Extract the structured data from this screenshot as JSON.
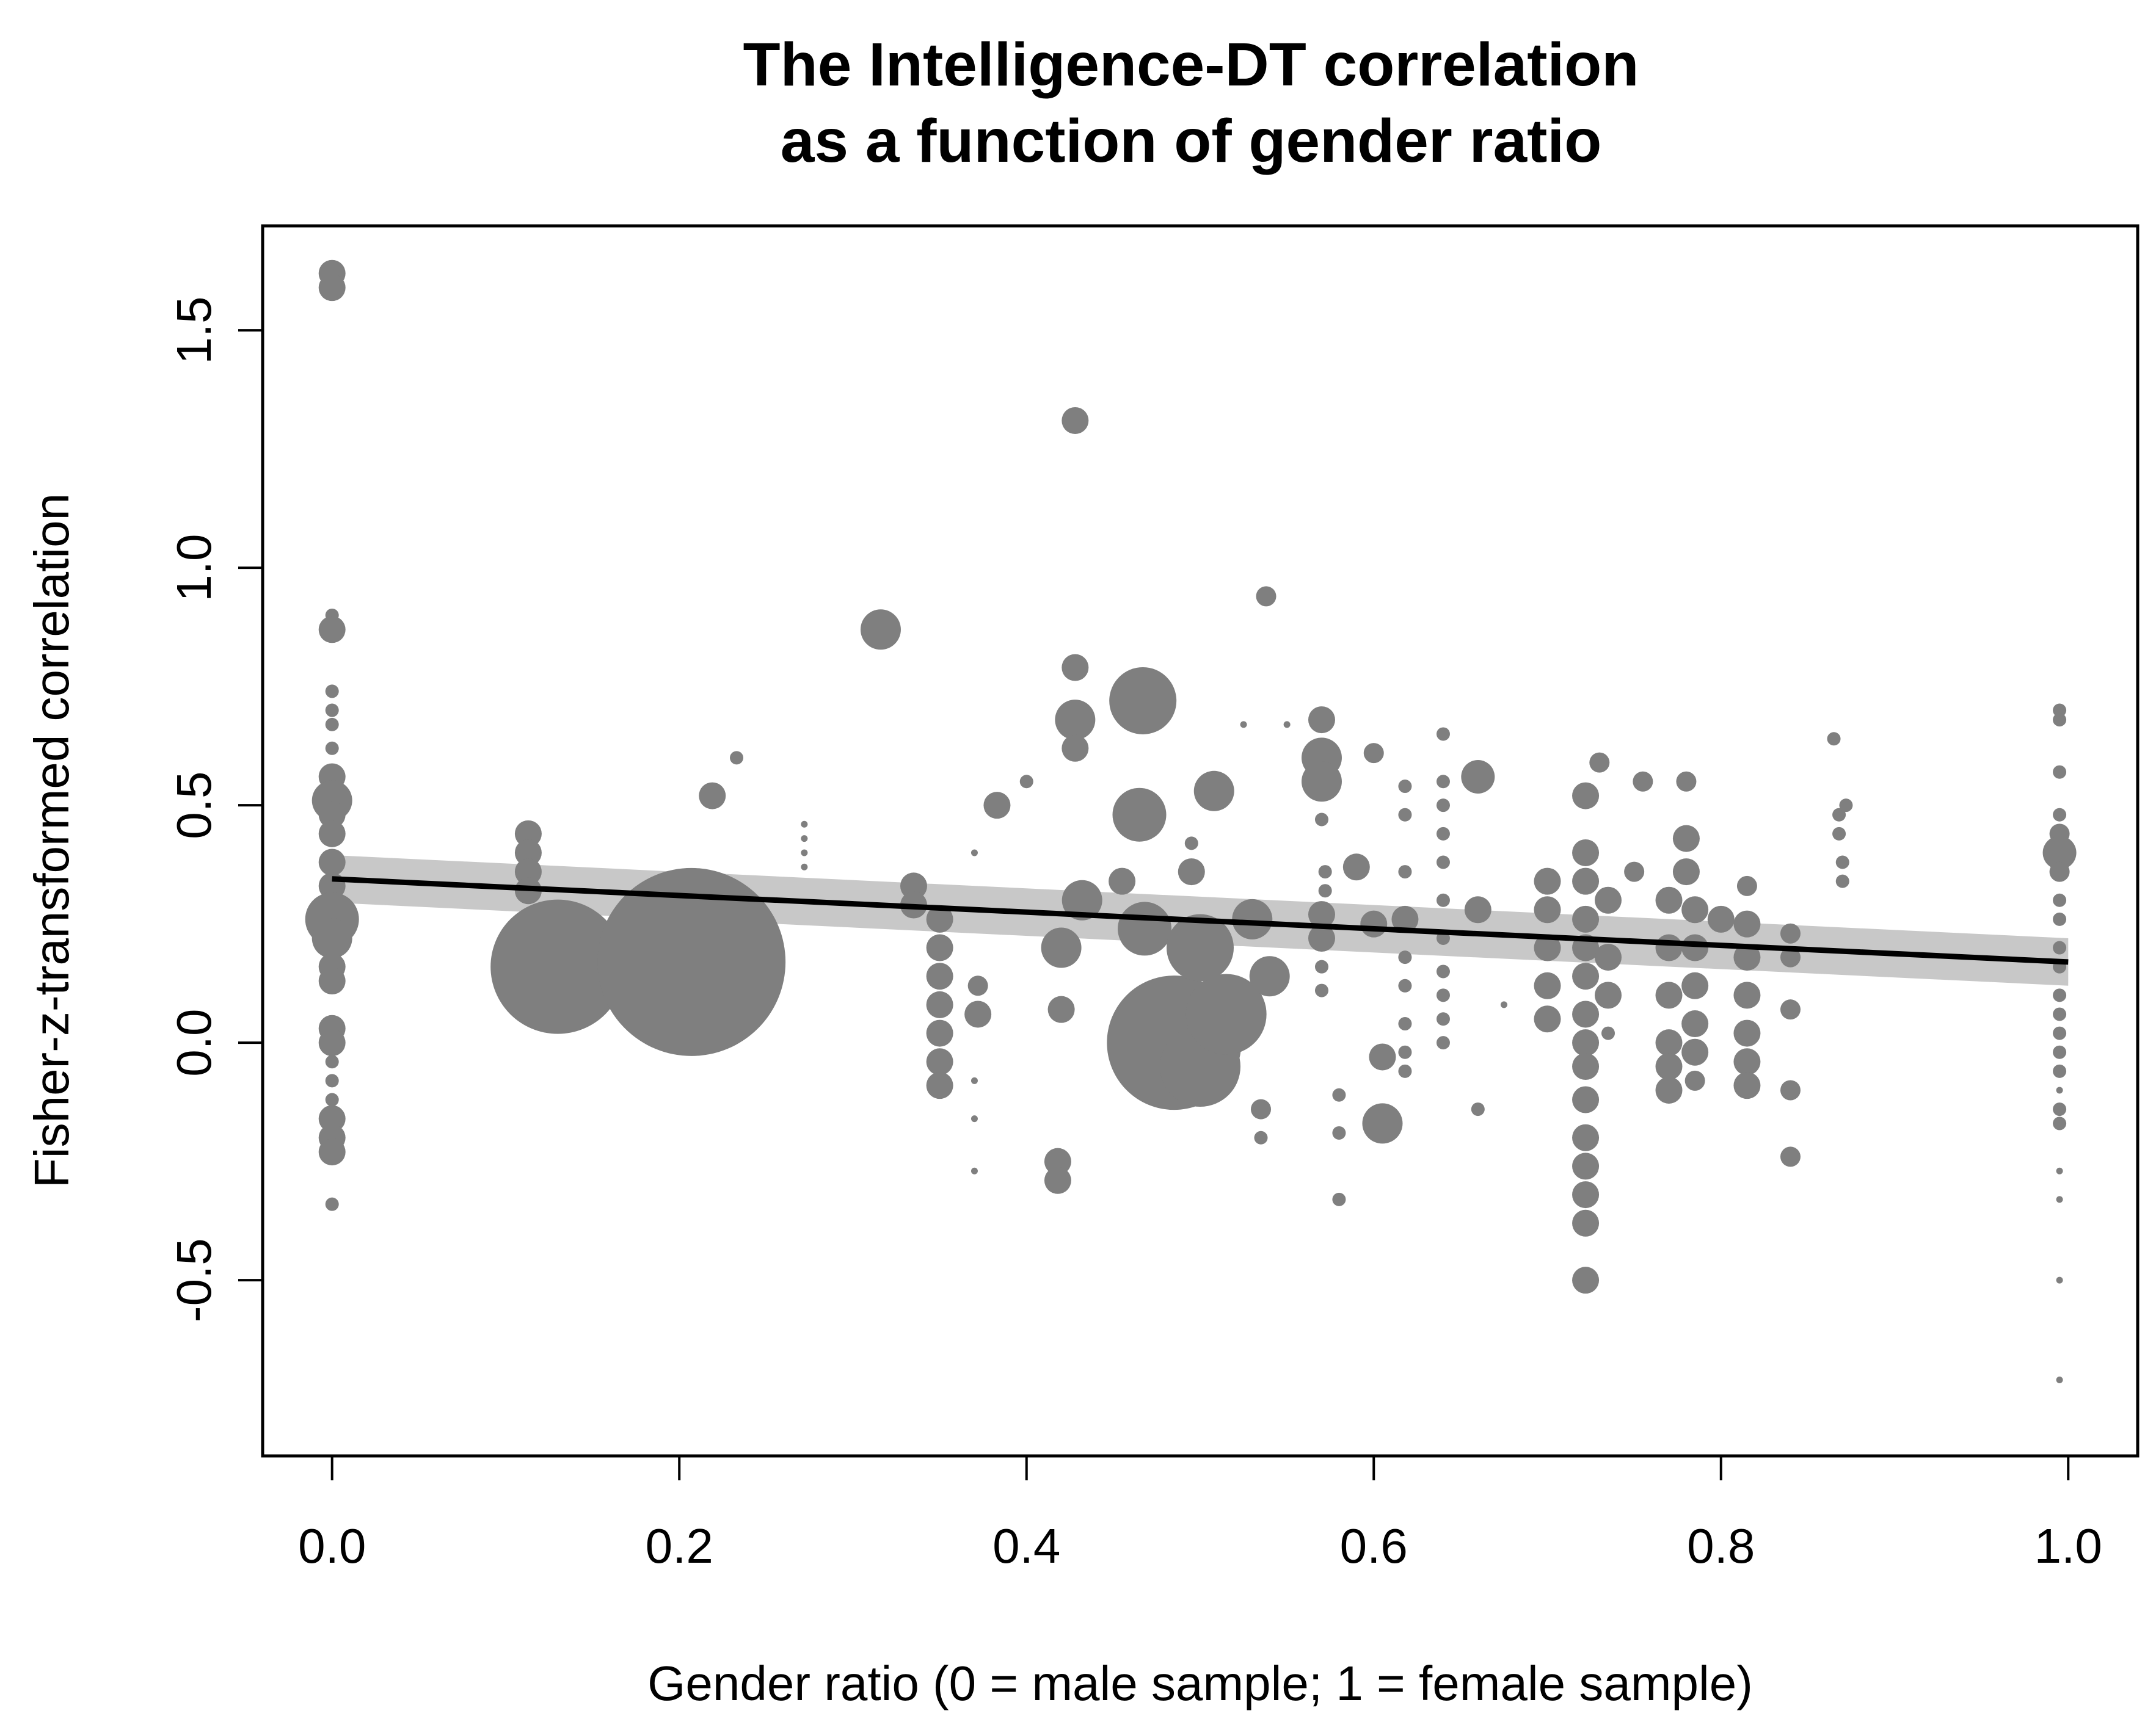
{
  "chart_data": {
    "type": "scatter",
    "title_lines": [
      "The Intelligence-DT correlation",
      "as a function of gender ratio"
    ],
    "xlabel": "Gender ratio (0 = male sample; 1 = female sample)",
    "ylabel": "Fisher-z-transformed correlation",
    "xlim": [
      -0.04,
      1.04
    ],
    "ylim": [
      -0.87,
      1.72
    ],
    "x_ticks": [
      0.0,
      0.2,
      0.4,
      0.6,
      0.8,
      1.0
    ],
    "x_tick_labels": [
      "0.0",
      "0.2",
      "0.4",
      "0.6",
      "0.8",
      "1.0"
    ],
    "y_ticks": [
      -0.5,
      0.0,
      0.5,
      1.0,
      1.5
    ],
    "y_tick_labels": [
      "-0.5",
      "0.0",
      "0.5",
      "1.0",
      "1.5"
    ],
    "marker_color": "#7f7f7f",
    "band_color": "#c8c8c8",
    "line_color": "#000000",
    "regression": {
      "intercept": 0.345,
      "slope": -0.175,
      "ci_halfwidth": 0.05
    },
    "points": [
      {
        "x": 0.0,
        "y": 1.62,
        "size": 2
      },
      {
        "x": 0.0,
        "y": 1.59,
        "size": 2
      },
      {
        "x": 0.0,
        "y": 0.9,
        "size": 1
      },
      {
        "x": 0.0,
        "y": 0.87,
        "size": 2
      },
      {
        "x": 0.0,
        "y": 0.74,
        "size": 1
      },
      {
        "x": 0.0,
        "y": 0.7,
        "size": 1
      },
      {
        "x": 0.0,
        "y": 0.67,
        "size": 1
      },
      {
        "x": 0.0,
        "y": 0.62,
        "size": 1
      },
      {
        "x": 0.0,
        "y": 0.56,
        "size": 2
      },
      {
        "x": 0.0,
        "y": 0.51,
        "size": 3
      },
      {
        "x": 0.0,
        "y": 0.48,
        "size": 2
      },
      {
        "x": 0.0,
        "y": 0.44,
        "size": 2
      },
      {
        "x": 0.0,
        "y": 0.38,
        "size": 2
      },
      {
        "x": 0.0,
        "y": 0.33,
        "size": 2
      },
      {
        "x": 0.0,
        "y": 0.28,
        "size": 2
      },
      {
        "x": 0.0,
        "y": 0.26,
        "size": 4
      },
      {
        "x": 0.0,
        "y": 0.22,
        "size": 3
      },
      {
        "x": 0.0,
        "y": 0.16,
        "size": 2
      },
      {
        "x": 0.0,
        "y": 0.13,
        "size": 2
      },
      {
        "x": 0.0,
        "y": 0.03,
        "size": 2
      },
      {
        "x": 0.0,
        "y": 0.0,
        "size": 2
      },
      {
        "x": 0.0,
        "y": -0.04,
        "size": 1
      },
      {
        "x": 0.0,
        "y": -0.08,
        "size": 1
      },
      {
        "x": 0.0,
        "y": -0.12,
        "size": 1
      },
      {
        "x": 0.0,
        "y": -0.16,
        "size": 2
      },
      {
        "x": 0.0,
        "y": -0.2,
        "size": 2
      },
      {
        "x": 0.0,
        "y": -0.23,
        "size": 2
      },
      {
        "x": 0.0,
        "y": -0.34,
        "size": 1
      },
      {
        "x": 0.113,
        "y": 0.44,
        "size": 2
      },
      {
        "x": 0.113,
        "y": 0.4,
        "size": 2
      },
      {
        "x": 0.113,
        "y": 0.36,
        "size": 2
      },
      {
        "x": 0.113,
        "y": 0.32,
        "size": 2
      },
      {
        "x": 0.13,
        "y": 0.16,
        "size": 10
      },
      {
        "x": 0.207,
        "y": 0.17,
        "size": 14
      },
      {
        "x": 0.219,
        "y": 0.52,
        "size": 2
      },
      {
        "x": 0.233,
        "y": 0.6,
        "size": 1
      },
      {
        "x": 0.272,
        "y": 0.46,
        "size": 0.5
      },
      {
        "x": 0.272,
        "y": 0.43,
        "size": 0.5
      },
      {
        "x": 0.272,
        "y": 0.4,
        "size": 0.5
      },
      {
        "x": 0.272,
        "y": 0.37,
        "size": 0.5
      },
      {
        "x": 0.316,
        "y": 0.87,
        "size": 3
      },
      {
        "x": 0.335,
        "y": 0.33,
        "size": 2
      },
      {
        "x": 0.335,
        "y": 0.29,
        "size": 2
      },
      {
        "x": 0.35,
        "y": 0.26,
        "size": 2
      },
      {
        "x": 0.35,
        "y": 0.2,
        "size": 2
      },
      {
        "x": 0.35,
        "y": 0.14,
        "size": 2
      },
      {
        "x": 0.35,
        "y": 0.08,
        "size": 2
      },
      {
        "x": 0.35,
        "y": 0.02,
        "size": 2
      },
      {
        "x": 0.35,
        "y": -0.04,
        "size": 2
      },
      {
        "x": 0.35,
        "y": -0.09,
        "size": 2
      },
      {
        "x": 0.37,
        "y": 0.4,
        "size": 0.5
      },
      {
        "x": 0.372,
        "y": 0.12,
        "size": 1.5
      },
      {
        "x": 0.372,
        "y": 0.06,
        "size": 2
      },
      {
        "x": 0.37,
        "y": -0.08,
        "size": 0.5
      },
      {
        "x": 0.37,
        "y": -0.16,
        "size": 0.5
      },
      {
        "x": 0.37,
        "y": -0.27,
        "size": 0.5
      },
      {
        "x": 0.383,
        "y": 0.5,
        "size": 2
      },
      {
        "x": 0.4,
        "y": 0.55,
        "size": 1
      },
      {
        "x": 0.428,
        "y": 1.31,
        "size": 2
      },
      {
        "x": 0.428,
        "y": 0.79,
        "size": 2
      },
      {
        "x": 0.428,
        "y": 0.68,
        "size": 3
      },
      {
        "x": 0.428,
        "y": 0.62,
        "size": 2
      },
      {
        "x": 0.432,
        "y": 0.3,
        "size": 3
      },
      {
        "x": 0.42,
        "y": 0.2,
        "size": 3
      },
      {
        "x": 0.42,
        "y": 0.07,
        "size": 2
      },
      {
        "x": 0.418,
        "y": -0.25,
        "size": 2
      },
      {
        "x": 0.418,
        "y": -0.29,
        "size": 2
      },
      {
        "x": 0.467,
        "y": 0.72,
        "size": 5
      },
      {
        "x": 0.465,
        "y": 0.48,
        "size": 4
      },
      {
        "x": 0.455,
        "y": 0.34,
        "size": 2
      },
      {
        "x": 0.468,
        "y": 0.24,
        "size": 4
      },
      {
        "x": 0.485,
        "y": 0.0,
        "size": 10
      },
      {
        "x": 0.5,
        "y": -0.05,
        "size": 6
      },
      {
        "x": 0.515,
        "y": 0.06,
        "size": 6
      },
      {
        "x": 0.5,
        "y": 0.2,
        "size": 5
      },
      {
        "x": 0.508,
        "y": 0.53,
        "size": 3
      },
      {
        "x": 0.495,
        "y": 0.42,
        "size": 1
      },
      {
        "x": 0.495,
        "y": 0.36,
        "size": 2
      },
      {
        "x": 0.525,
        "y": 0.67,
        "size": 0.5
      },
      {
        "x": 0.53,
        "y": 0.26,
        "size": 3
      },
      {
        "x": 0.54,
        "y": 0.14,
        "size": 3
      },
      {
        "x": 0.538,
        "y": 0.94,
        "size": 1.5
      },
      {
        "x": 0.535,
        "y": -0.14,
        "size": 1.5
      },
      {
        "x": 0.535,
        "y": -0.2,
        "size": 1
      },
      {
        "x": 0.55,
        "y": 0.67,
        "size": 0.5
      },
      {
        "x": 0.57,
        "y": 0.68,
        "size": 2
      },
      {
        "x": 0.57,
        "y": 0.6,
        "size": 3
      },
      {
        "x": 0.57,
        "y": 0.55,
        "size": 3
      },
      {
        "x": 0.57,
        "y": 0.47,
        "size": 1
      },
      {
        "x": 0.572,
        "y": 0.36,
        "size": 1
      },
      {
        "x": 0.572,
        "y": 0.32,
        "size": 1
      },
      {
        "x": 0.57,
        "y": 0.27,
        "size": 2
      },
      {
        "x": 0.57,
        "y": 0.22,
        "size": 2
      },
      {
        "x": 0.57,
        "y": 0.16,
        "size": 1
      },
      {
        "x": 0.57,
        "y": 0.11,
        "size": 1
      },
      {
        "x": 0.58,
        "y": -0.11,
        "size": 1
      },
      {
        "x": 0.58,
        "y": -0.19,
        "size": 1
      },
      {
        "x": 0.58,
        "y": -0.33,
        "size": 1
      },
      {
        "x": 0.59,
        "y": 0.37,
        "size": 2
      },
      {
        "x": 0.6,
        "y": 0.61,
        "size": 1.5
      },
      {
        "x": 0.6,
        "y": 0.25,
        "size": 2
      },
      {
        "x": 0.605,
        "y": -0.03,
        "size": 2
      },
      {
        "x": 0.605,
        "y": -0.17,
        "size": 3
      },
      {
        "x": 0.618,
        "y": 0.54,
        "size": 1
      },
      {
        "x": 0.618,
        "y": 0.48,
        "size": 1
      },
      {
        "x": 0.618,
        "y": 0.36,
        "size": 1
      },
      {
        "x": 0.618,
        "y": 0.26,
        "size": 2
      },
      {
        "x": 0.618,
        "y": 0.18,
        "size": 1
      },
      {
        "x": 0.618,
        "y": 0.12,
        "size": 1
      },
      {
        "x": 0.618,
        "y": 0.04,
        "size": 1
      },
      {
        "x": 0.618,
        "y": -0.02,
        "size": 1
      },
      {
        "x": 0.618,
        "y": -0.06,
        "size": 1
      },
      {
        "x": 0.64,
        "y": 0.65,
        "size": 1
      },
      {
        "x": 0.64,
        "y": 0.55,
        "size": 1
      },
      {
        "x": 0.64,
        "y": 0.5,
        "size": 1
      },
      {
        "x": 0.64,
        "y": 0.44,
        "size": 1
      },
      {
        "x": 0.64,
        "y": 0.38,
        "size": 1
      },
      {
        "x": 0.64,
        "y": 0.3,
        "size": 1
      },
      {
        "x": 0.64,
        "y": 0.22,
        "size": 1
      },
      {
        "x": 0.64,
        "y": 0.15,
        "size": 1
      },
      {
        "x": 0.64,
        "y": 0.1,
        "size": 1
      },
      {
        "x": 0.64,
        "y": 0.05,
        "size": 1
      },
      {
        "x": 0.64,
        "y": 0.0,
        "size": 1
      },
      {
        "x": 0.66,
        "y": 0.56,
        "size": 2.5
      },
      {
        "x": 0.66,
        "y": 0.28,
        "size": 2
      },
      {
        "x": 0.66,
        "y": -0.14,
        "size": 1
      },
      {
        "x": 0.675,
        "y": 0.08,
        "size": 0.5
      },
      {
        "x": 0.7,
        "y": 0.34,
        "size": 2
      },
      {
        "x": 0.7,
        "y": 0.28,
        "size": 2
      },
      {
        "x": 0.7,
        "y": 0.2,
        "size": 2
      },
      {
        "x": 0.7,
        "y": 0.12,
        "size": 2
      },
      {
        "x": 0.7,
        "y": 0.05,
        "size": 2
      },
      {
        "x": 0.722,
        "y": 0.52,
        "size": 2
      },
      {
        "x": 0.722,
        "y": 0.4,
        "size": 2
      },
      {
        "x": 0.722,
        "y": 0.34,
        "size": 2
      },
      {
        "x": 0.722,
        "y": 0.26,
        "size": 2
      },
      {
        "x": 0.722,
        "y": 0.2,
        "size": 2
      },
      {
        "x": 0.722,
        "y": 0.14,
        "size": 2
      },
      {
        "x": 0.722,
        "y": 0.06,
        "size": 2
      },
      {
        "x": 0.722,
        "y": 0.0,
        "size": 2
      },
      {
        "x": 0.722,
        "y": -0.05,
        "size": 2
      },
      {
        "x": 0.722,
        "y": -0.12,
        "size": 2
      },
      {
        "x": 0.722,
        "y": -0.2,
        "size": 2
      },
      {
        "x": 0.722,
        "y": -0.26,
        "size": 2
      },
      {
        "x": 0.722,
        "y": -0.32,
        "size": 2
      },
      {
        "x": 0.722,
        "y": -0.38,
        "size": 2
      },
      {
        "x": 0.722,
        "y": -0.5,
        "size": 2
      },
      {
        "x": 0.73,
        "y": 0.59,
        "size": 1.5
      },
      {
        "x": 0.735,
        "y": 0.3,
        "size": 2
      },
      {
        "x": 0.735,
        "y": 0.18,
        "size": 2
      },
      {
        "x": 0.735,
        "y": 0.1,
        "size": 2
      },
      {
        "x": 0.735,
        "y": 0.02,
        "size": 1
      },
      {
        "x": 0.75,
        "y": 0.36,
        "size": 1.5
      },
      {
        "x": 0.755,
        "y": 0.55,
        "size": 1.5
      },
      {
        "x": 0.77,
        "y": 0.3,
        "size": 2
      },
      {
        "x": 0.77,
        "y": 0.2,
        "size": 2
      },
      {
        "x": 0.77,
        "y": 0.1,
        "size": 2
      },
      {
        "x": 0.77,
        "y": 0.0,
        "size": 2
      },
      {
        "x": 0.77,
        "y": -0.05,
        "size": 2
      },
      {
        "x": 0.77,
        "y": -0.1,
        "size": 2
      },
      {
        "x": 0.78,
        "y": 0.55,
        "size": 1.5
      },
      {
        "x": 0.78,
        "y": 0.43,
        "size": 2
      },
      {
        "x": 0.78,
        "y": 0.36,
        "size": 2
      },
      {
        "x": 0.785,
        "y": 0.28,
        "size": 2
      },
      {
        "x": 0.785,
        "y": 0.2,
        "size": 2
      },
      {
        "x": 0.785,
        "y": 0.12,
        "size": 2
      },
      {
        "x": 0.785,
        "y": 0.04,
        "size": 2
      },
      {
        "x": 0.785,
        "y": -0.02,
        "size": 2
      },
      {
        "x": 0.785,
        "y": -0.08,
        "size": 1.5
      },
      {
        "x": 0.8,
        "y": 0.26,
        "size": 2
      },
      {
        "x": 0.815,
        "y": 0.33,
        "size": 1.5
      },
      {
        "x": 0.815,
        "y": 0.25,
        "size": 2
      },
      {
        "x": 0.815,
        "y": 0.18,
        "size": 2
      },
      {
        "x": 0.815,
        "y": 0.1,
        "size": 2
      },
      {
        "x": 0.815,
        "y": 0.02,
        "size": 2
      },
      {
        "x": 0.815,
        "y": -0.04,
        "size": 2
      },
      {
        "x": 0.815,
        "y": -0.09,
        "size": 2
      },
      {
        "x": 0.84,
        "y": 0.23,
        "size": 1.5
      },
      {
        "x": 0.84,
        "y": 0.18,
        "size": 1.5
      },
      {
        "x": 0.84,
        "y": 0.07,
        "size": 1.5
      },
      {
        "x": 0.84,
        "y": -0.1,
        "size": 1.5
      },
      {
        "x": 0.84,
        "y": -0.24,
        "size": 1.5
      },
      {
        "x": 0.865,
        "y": 0.64,
        "size": 1
      },
      {
        "x": 0.868,
        "y": 0.48,
        "size": 1
      },
      {
        "x": 0.872,
        "y": 0.5,
        "size": 1
      },
      {
        "x": 0.868,
        "y": 0.44,
        "size": 1
      },
      {
        "x": 0.87,
        "y": 0.38,
        "size": 1
      },
      {
        "x": 0.87,
        "y": 0.34,
        "size": 1
      },
      {
        "x": 0.995,
        "y": 0.7,
        "size": 1
      },
      {
        "x": 0.995,
        "y": 0.68,
        "size": 1
      },
      {
        "x": 0.995,
        "y": 0.57,
        "size": 1
      },
      {
        "x": 0.995,
        "y": 0.48,
        "size": 1
      },
      {
        "x": 0.995,
        "y": 0.44,
        "size": 1.5
      },
      {
        "x": 0.995,
        "y": 0.4,
        "size": 2.5
      },
      {
        "x": 0.995,
        "y": 0.36,
        "size": 1.5
      },
      {
        "x": 0.995,
        "y": 0.3,
        "size": 1
      },
      {
        "x": 0.995,
        "y": 0.26,
        "size": 1
      },
      {
        "x": 0.995,
        "y": 0.2,
        "size": 1
      },
      {
        "x": 0.995,
        "y": 0.16,
        "size": 1
      },
      {
        "x": 0.995,
        "y": 0.1,
        "size": 1
      },
      {
        "x": 0.995,
        "y": 0.06,
        "size": 1
      },
      {
        "x": 0.995,
        "y": 0.02,
        "size": 1
      },
      {
        "x": 0.995,
        "y": -0.02,
        "size": 1
      },
      {
        "x": 0.995,
        "y": -0.06,
        "size": 1
      },
      {
        "x": 0.995,
        "y": -0.1,
        "size": 0.5
      },
      {
        "x": 0.995,
        "y": -0.14,
        "size": 1
      },
      {
        "x": 0.995,
        "y": -0.17,
        "size": 1
      },
      {
        "x": 0.995,
        "y": -0.27,
        "size": 0.5
      },
      {
        "x": 0.995,
        "y": -0.33,
        "size": 0.5
      },
      {
        "x": 0.995,
        "y": -0.5,
        "size": 0.5
      },
      {
        "x": 0.995,
        "y": -0.71,
        "size": 0.5
      }
    ]
  }
}
